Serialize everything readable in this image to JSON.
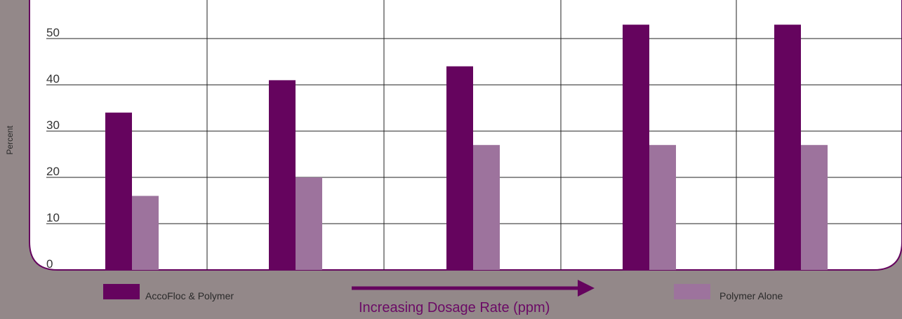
{
  "chart_data": {
    "type": "bar",
    "title": "",
    "xlabel": "Increasing Dosage Rate (ppm)",
    "ylabel": "Percent",
    "ylim": [
      0,
      57
    ],
    "yticks": [
      0,
      10,
      20,
      30,
      40,
      50
    ],
    "categories": [
      "",
      "",
      "",
      "",
      ""
    ],
    "series": [
      {
        "name": "AccoFloc & Polymer",
        "color": "#65045e",
        "values": [
          34,
          41,
          44,
          53,
          53
        ]
      },
      {
        "name": "Polymer Alone",
        "color": "#9d739d",
        "values": [
          16,
          20,
          27,
          27,
          27
        ]
      }
    ],
    "grid": true,
    "legend": "bottom"
  },
  "colors": {
    "background": "#938889",
    "panel": "#ffffff",
    "panel_border": "#65045e",
    "arrow": "#65045e",
    "accent_text": "#6b0a66"
  },
  "icons": {
    "arrow": "right-arrow-icon"
  }
}
